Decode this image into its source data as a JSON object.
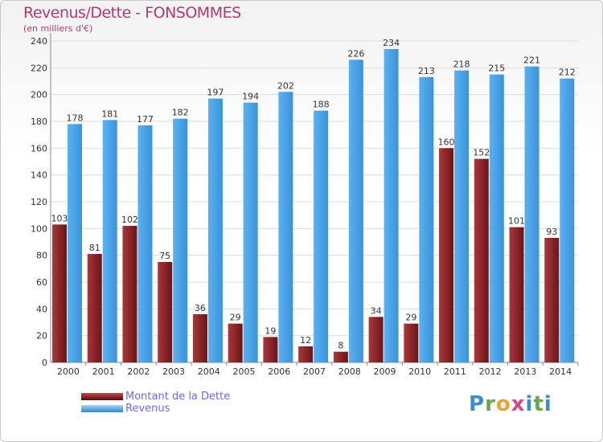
{
  "title": "Revenus/Dette - FONSOMMES",
  "subtitle": "(en milliers d'€)",
  "legend": {
    "debt_label": "Montant de la Dette",
    "revenue_label": "Revenus"
  },
  "logo": {
    "text": "Proxiti",
    "p": "P",
    "r": "r",
    "o": "o",
    "x": "x",
    "i1": "i",
    "t": "t",
    "i2": "i"
  },
  "colors": {
    "debt": "#7a1a1c",
    "revenue": "#4aa3e8",
    "title": "#b23a6e",
    "legend_text": "#6a6af0"
  },
  "chart_data": {
    "type": "bar",
    "categories": [
      "2000",
      "2001",
      "2002",
      "2003",
      "2004",
      "2005",
      "2006",
      "2007",
      "2008",
      "2009",
      "2010",
      "2011",
      "2012",
      "2013",
      "2014"
    ],
    "series": [
      {
        "name": "Montant de la Dette",
        "values": [
          103,
          81,
          102,
          75,
          36,
          29,
          19,
          12,
          8,
          34,
          29,
          160,
          152,
          101,
          93
        ]
      },
      {
        "name": "Revenus",
        "values": [
          178,
          181,
          177,
          182,
          197,
          194,
          202,
          188,
          226,
          234,
          213,
          218,
          215,
          221,
          212
        ]
      }
    ],
    "ylim": [
      0,
      240
    ],
    "yticks": [
      0,
      20,
      40,
      60,
      80,
      100,
      120,
      140,
      160,
      180,
      200,
      220,
      240
    ],
    "grid": true,
    "legend_position": "bottom-left"
  }
}
